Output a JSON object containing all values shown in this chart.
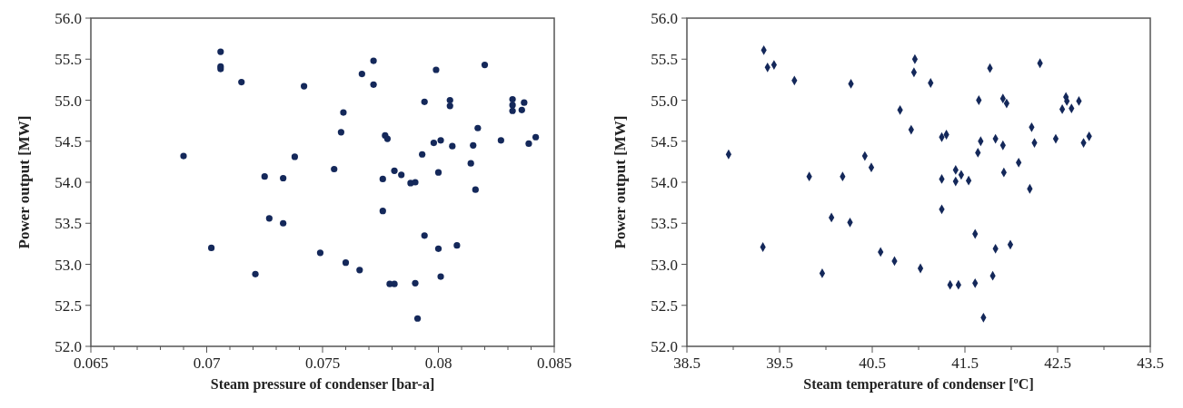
{
  "chart_data": [
    {
      "type": "scatter",
      "xlabel": "Steam pressure of condenser [bar-a]",
      "ylabel": "Power output  [MW]",
      "marker": "circle",
      "grid": false,
      "xlim": [
        0.065,
        0.085
      ],
      "xticks": [
        0.065,
        {
          "value": 0.066,
          "label": null
        },
        {
          "value": 0.067,
          "label": null
        },
        {
          "value": 0.068,
          "label": null
        },
        {
          "value": 0.069,
          "label": null
        },
        0.07,
        {
          "value": 0.071,
          "label": null
        },
        {
          "value": 0.072,
          "label": null
        },
        {
          "value": 0.073,
          "label": null
        },
        {
          "value": 0.074,
          "label": null
        },
        0.075,
        {
          "value": 0.076,
          "label": null
        },
        {
          "value": 0.077,
          "label": null
        },
        {
          "value": 0.078,
          "label": null
        },
        {
          "value": 0.079,
          "label": null
        },
        0.08,
        {
          "value": 0.081,
          "label": null
        },
        {
          "value": 0.082,
          "label": null
        },
        {
          "value": 0.083,
          "label": null
        },
        {
          "value": 0.084,
          "label": null
        },
        0.085
      ],
      "ylim": [
        52,
        56
      ],
      "yticks": [
        {
          "value": 52,
          "label": "52.0"
        },
        {
          "value": 52.5,
          "label": "52.5"
        },
        {
          "value": 53,
          "label": "53.0"
        },
        {
          "value": 53.5,
          "label": "53.5"
        },
        {
          "value": 54,
          "label": "54.0"
        },
        {
          "value": 54.5,
          "label": "54.5"
        },
        {
          "value": 55,
          "label": "55.0"
        },
        {
          "value": 55.5,
          "label": "55.5"
        },
        {
          "value": 56,
          "label": "56.0"
        }
      ],
      "series": [
        {
          "color": "#14285a",
          "x": [
            0.0706,
            0.0706,
            0.0706,
            0.0715,
            0.0742,
            0.0759,
            0.0758,
            0.069,
            0.0738,
            0.0755,
            0.0725,
            0.0733,
            0.0727,
            0.0733,
            0.0702,
            0.0749,
            0.076,
            0.0721,
            0.0772,
            0.0767,
            0.0772,
            0.0799,
            0.082,
            0.0794,
            0.0805,
            0.0805,
            0.0832,
            0.0832,
            0.0832,
            0.0837,
            0.0836,
            0.0777,
            0.0778,
            0.0798,
            0.0801,
            0.0806,
            0.0817,
            0.0815,
            0.0827,
            0.0839,
            0.0842,
            0.0793,
            0.0814,
            0.08,
            0.0816,
            0.0781,
            0.0784,
            0.0788,
            0.079,
            0.0776,
            0.0776,
            0.0794,
            0.08,
            0.0808,
            0.0766,
            0.0779,
            0.0781,
            0.079,
            0.0801,
            0.0791
          ],
          "values": [
            55.59,
            55.41,
            55.38,
            55.22,
            55.17,
            54.85,
            54.61,
            54.32,
            54.31,
            54.16,
            54.07,
            54.05,
            53.56,
            53.5,
            53.2,
            53.14,
            53.02,
            52.88,
            55.48,
            55.32,
            55.19,
            55.37,
            55.43,
            54.98,
            55.0,
            54.93,
            55.01,
            54.94,
            54.87,
            54.97,
            54.88,
            54.57,
            54.53,
            54.48,
            54.51,
            54.44,
            54.66,
            54.45,
            54.51,
            54.47,
            54.55,
            54.34,
            54.23,
            54.12,
            53.91,
            54.14,
            54.09,
            53.99,
            54.0,
            54.04,
            53.65,
            53.35,
            53.19,
            53.23,
            52.93,
            52.76,
            52.76,
            52.77,
            52.85,
            52.34
          ]
        }
      ]
    },
    {
      "type": "scatter",
      "xlabel": "Steam temperature of condenser [ºC]",
      "ylabel": "Power output  [MW]",
      "marker": "diamond",
      "grid": false,
      "xlim": [
        38.5,
        43.5
      ],
      "xticks": [
        38.5,
        {
          "value": 39,
          "label": null
        },
        39.5,
        {
          "value": 40,
          "label": null
        },
        40.5,
        {
          "value": 41,
          "label": null
        },
        41.5,
        {
          "value": 42,
          "label": null
        },
        42.5,
        {
          "value": 43,
          "label": null
        },
        43.5
      ],
      "ylim": [
        52,
        56
      ],
      "yticks": [
        {
          "value": 52,
          "label": "52.0"
        },
        {
          "value": 52.5,
          "label": "52.5"
        },
        {
          "value": 53,
          "label": "53.0"
        },
        {
          "value": 53.5,
          "label": "53.5"
        },
        {
          "value": 54,
          "label": "54.0"
        },
        {
          "value": 54.5,
          "label": "54.5"
        },
        {
          "value": 55,
          "label": "55.0"
        },
        {
          "value": 55.5,
          "label": "55.5"
        },
        {
          "value": 56,
          "label": "56.0"
        }
      ],
      "series": [
        {
          "color": "#14285a",
          "x": [
            39.33,
            39.37,
            39.44,
            39.66,
            40.27,
            40.96,
            40.95,
            41.13,
            40.8,
            40.92,
            38.95,
            40.42,
            40.49,
            39.82,
            40.18,
            40.06,
            40.26,
            39.32,
            40.59,
            40.74,
            41.02,
            39.96,
            41.77,
            42.31,
            41.65,
            41.91,
            41.95,
            42.59,
            42.55,
            42.65,
            42.73,
            42.6,
            41.25,
            41.3,
            41.67,
            41.83,
            41.91,
            42.22,
            42.25,
            42.48,
            42.78,
            42.84,
            41.64,
            42.08,
            41.92,
            42.2,
            41.4,
            41.46,
            41.4,
            41.54,
            41.25,
            41.25,
            41.61,
            41.83,
            41.99,
            41.34,
            41.43,
            41.61,
            41.8,
            41.7
          ],
          "values": [
            55.61,
            55.4,
            55.43,
            55.24,
            55.2,
            55.5,
            55.34,
            55.21,
            54.88,
            54.64,
            54.34,
            54.32,
            54.18,
            54.07,
            54.07,
            53.57,
            53.51,
            53.21,
            53.15,
            53.04,
            52.95,
            52.89,
            55.39,
            55.45,
            55.0,
            55.02,
            54.96,
            55.04,
            54.89,
            54.9,
            54.99,
            54.99,
            54.55,
            54.58,
            54.5,
            54.53,
            54.45,
            54.67,
            54.48,
            54.53,
            54.48,
            54.56,
            54.36,
            54.24,
            54.12,
            53.92,
            54.15,
            54.09,
            54.01,
            54.02,
            54.04,
            53.67,
            53.37,
            53.19,
            53.24,
            52.75,
            52.75,
            52.77,
            52.86,
            52.35
          ]
        }
      ]
    }
  ]
}
